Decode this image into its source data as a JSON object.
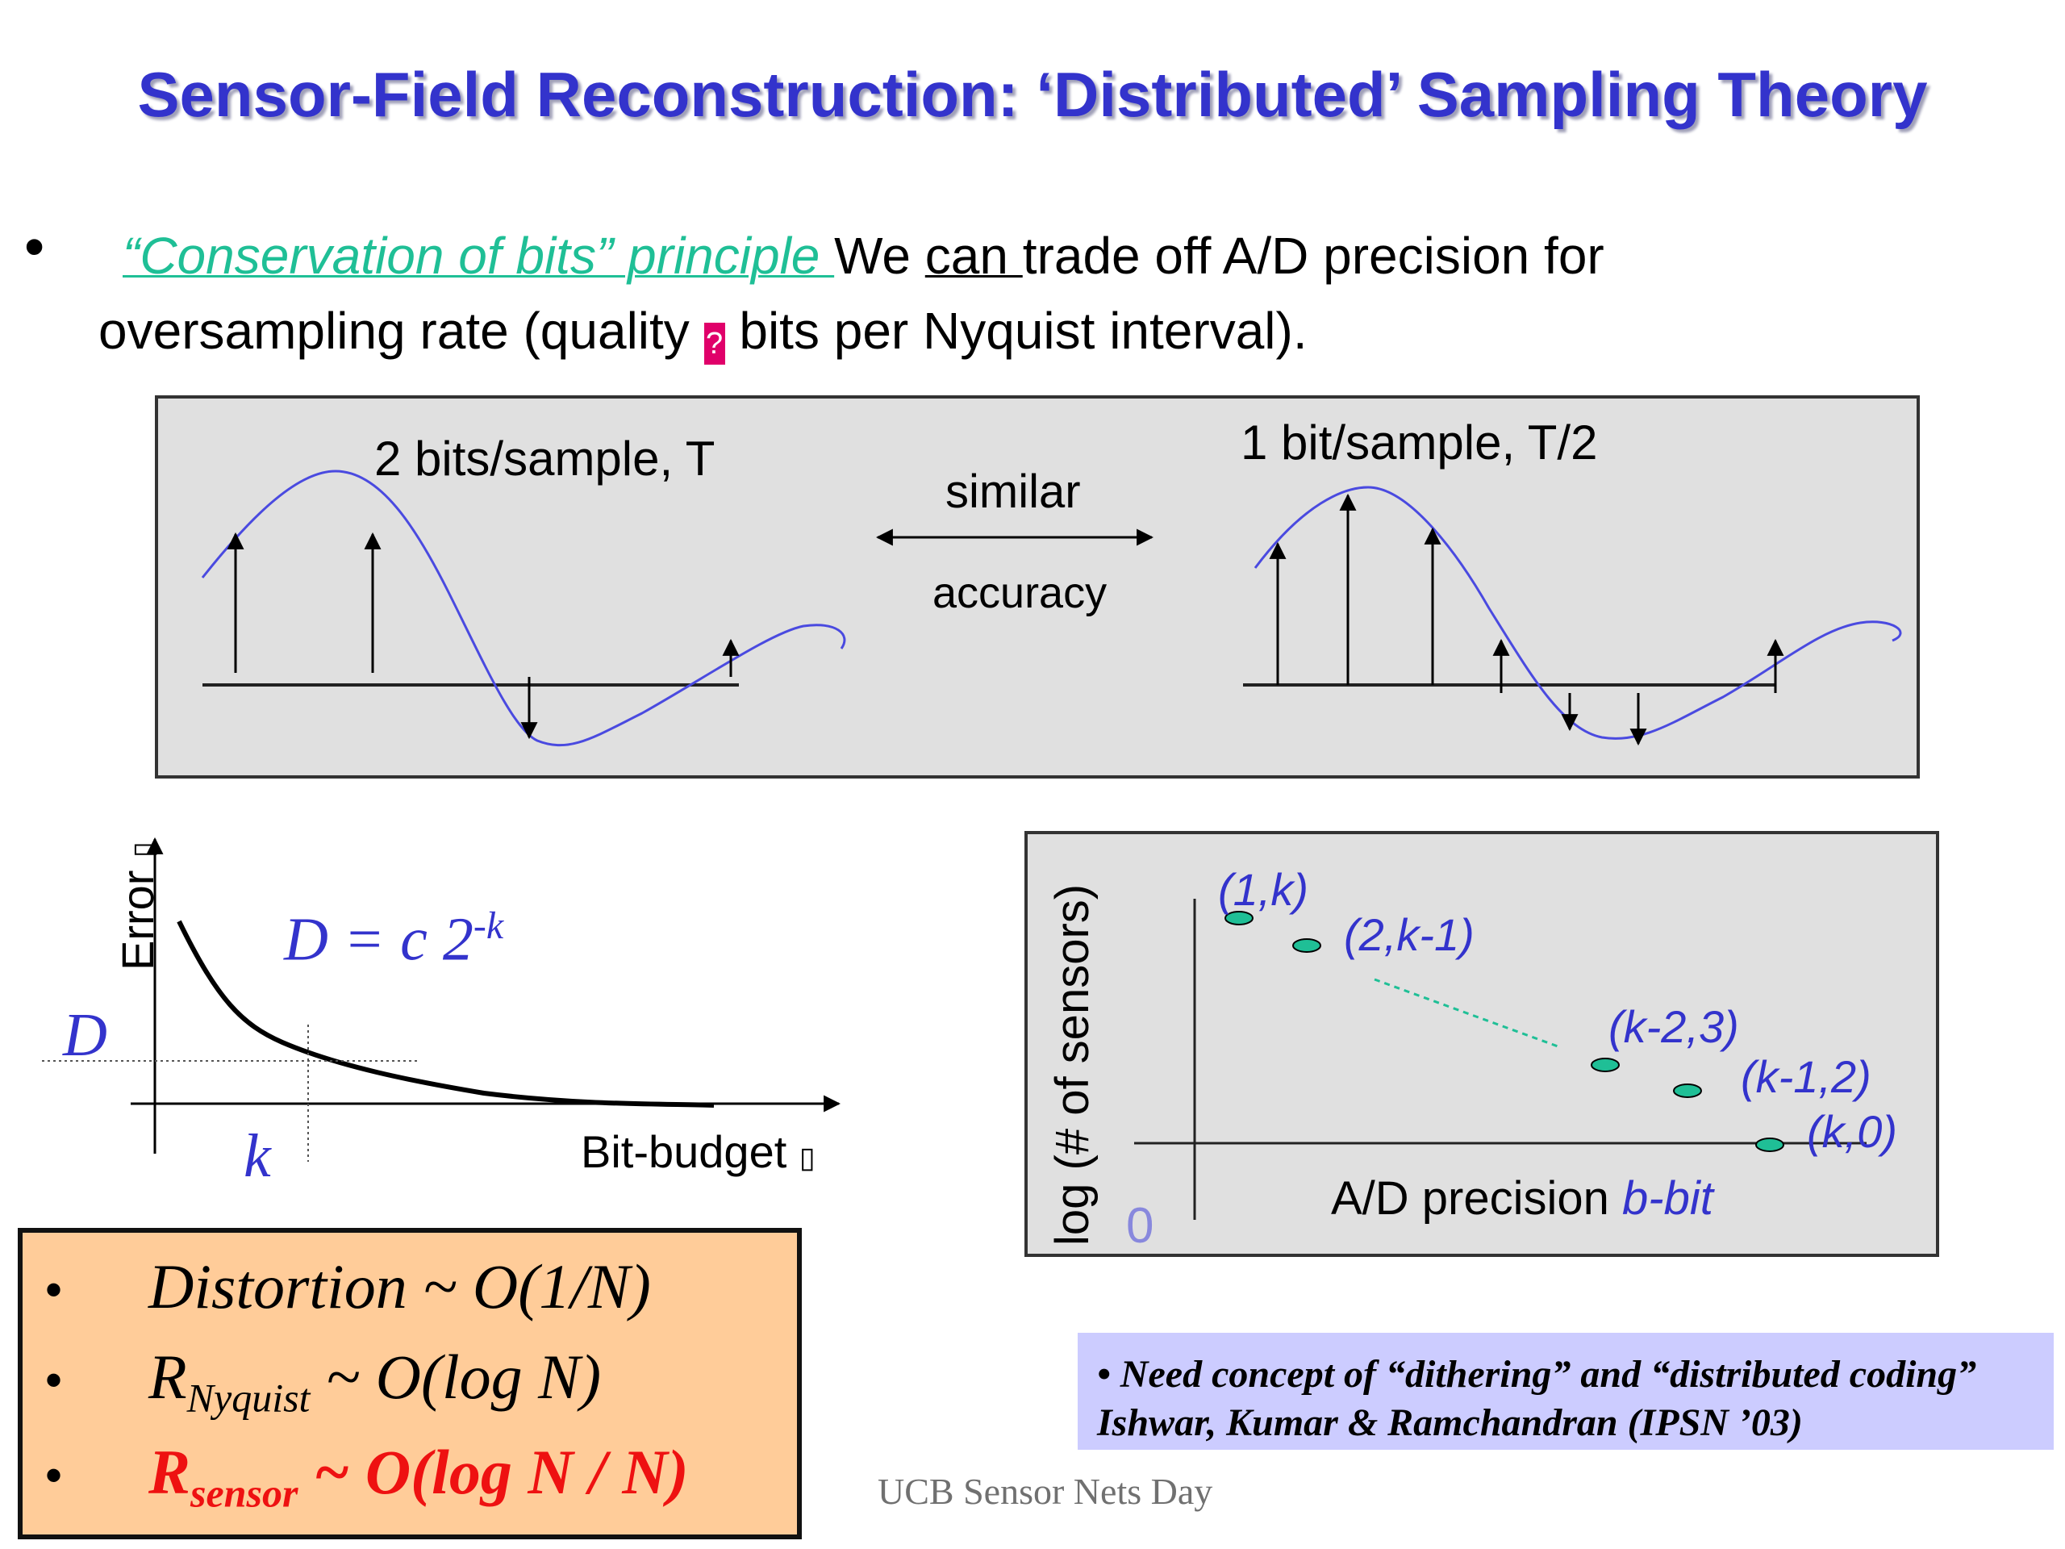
{
  "slide": {
    "title": "Sensor-Field Reconstruction: ‘Distributed’ Sampling Theory",
    "bullet_symbol": "•",
    "principle": "“Conservation of bits” principle ",
    "text_we": "We ",
    "text_can": "can ",
    "text_rest1": "trade off A/D precision for",
    "text_line2_a": "oversampling rate (quality ",
    "arrow_glyph": "?",
    "text_line2_b": " bits per Nyquist interval)."
  },
  "sampling_panel": {
    "left_label": "2 bits/sample, T",
    "right_label": "1  bit/sample, T/2",
    "center_top": "similar",
    "center_bottom": "accuracy"
  },
  "error_plot": {
    "ylabel": "Error",
    "ylabel_arrow": "▯",
    "formula_prefix": "D = c 2",
    "formula_exp": "-k",
    "d_label": "D",
    "k_label": "k",
    "xlabel": "Bit-budget",
    "xlabel_arrow": "▯"
  },
  "tradeoff_plot": {
    "ylabel": "log (# of sensors)",
    "xlabel": "A/D precision ",
    "xlabel_italic": "b-bit",
    "origin": "0",
    "points": [
      {
        "label": "(1,k)"
      },
      {
        "label": "(2,k-1)"
      },
      {
        "label": "(k-2,3)"
      },
      {
        "label": "(k-1,2)"
      },
      {
        "label": "(k,0)"
      }
    ]
  },
  "legend": {
    "items": [
      {
        "bullet": "•",
        "main": "Distortion ~ O(1/N)",
        "sub": "",
        "tail": ""
      },
      {
        "bullet": "•",
        "main": "R",
        "sub": "Nyquist",
        "tail": " ~ O(log N)"
      },
      {
        "bullet": "•",
        "main": "R",
        "sub": "sensor",
        "tail": " ~ O(log N / N)"
      }
    ],
    "colors": {
      "normal": "#000000",
      "highlight": "#ee1111"
    }
  },
  "note": {
    "line1": "•   Need concept of “dithering” and “distributed coding”",
    "line2": "Ishwar, Kumar & Ramchandran (IPSN ’03)"
  },
  "footer": "UCB Sensor Nets Day",
  "colors": {
    "title": "#3333cc",
    "accent_green": "#1fbf96",
    "curve_blue": "#4a4ae0",
    "panel_bg": "#e0e0e0"
  }
}
